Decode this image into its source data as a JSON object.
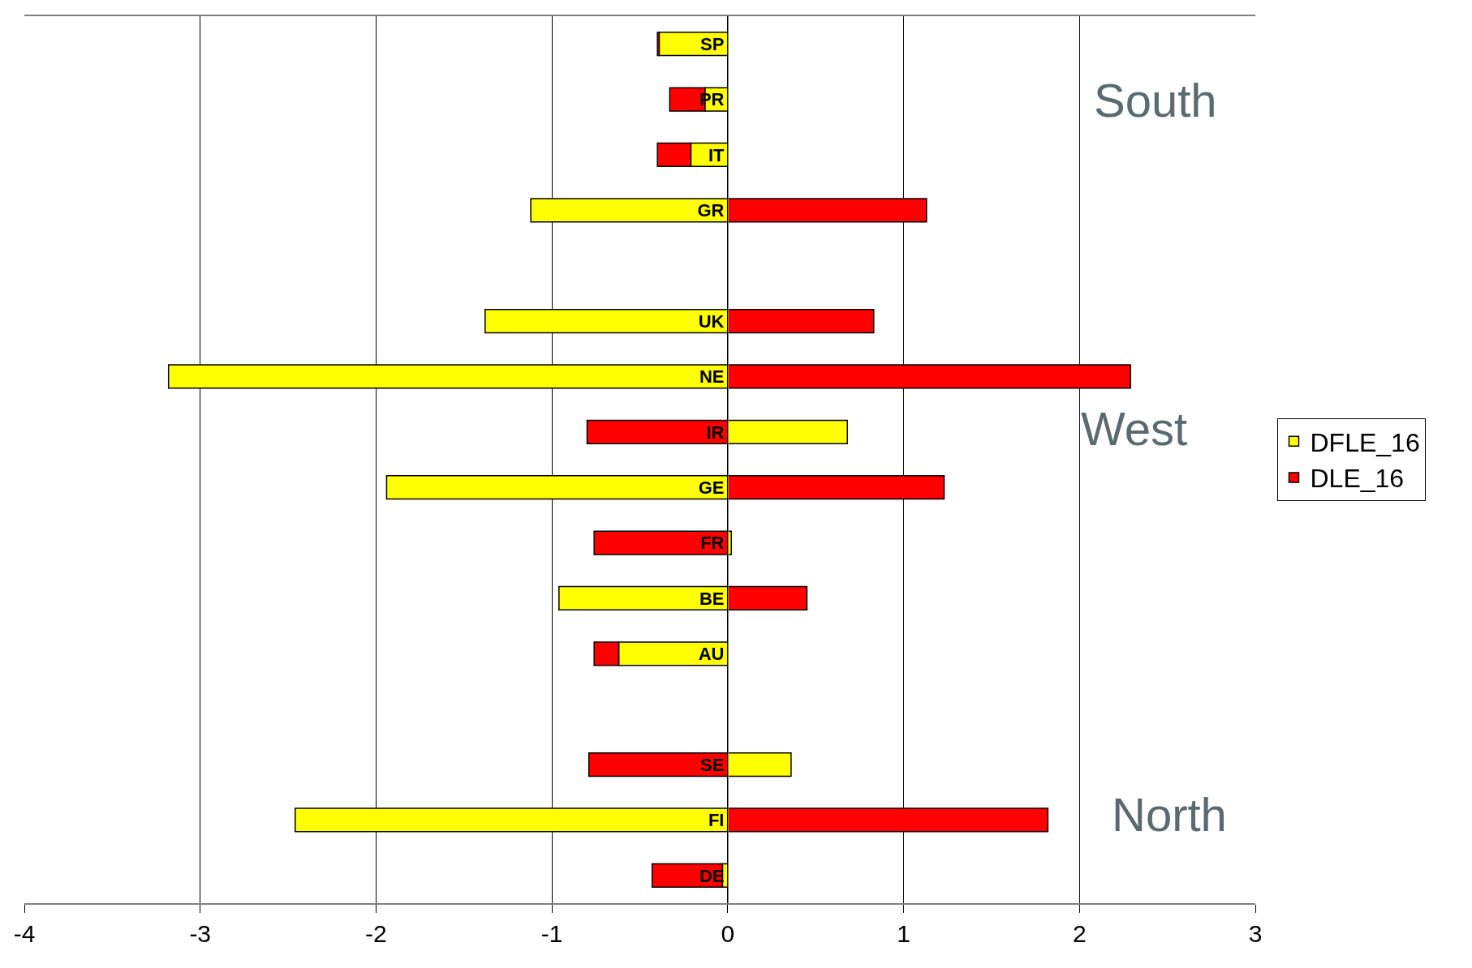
{
  "chart_data": {
    "type": "bar",
    "orientation": "horizontal",
    "stacked": true,
    "categories": [
      "SP",
      "PR",
      "IT",
      "GR",
      null,
      "UK",
      "NE",
      "IR",
      "GE",
      "FR",
      "BE",
      "AU",
      null,
      "SE",
      "FI",
      "DE"
    ],
    "series": [
      {
        "name": "DFLE_16",
        "color": "#ffff00",
        "values": [
          -0.39,
          -0.13,
          -0.21,
          -1.12,
          null,
          -1.38,
          -3.18,
          0.68,
          -1.94,
          0.02,
          -0.96,
          -0.62,
          null,
          0.36,
          -2.46,
          -0.03
        ]
      },
      {
        "name": "DLE_16",
        "color": "#ff0000",
        "values": [
          -0.01,
          -0.2,
          -0.19,
          1.13,
          null,
          0.83,
          2.29,
          -0.8,
          1.23,
          -0.76,
          0.45,
          -0.14,
          null,
          -0.79,
          1.82,
          -0.4
        ]
      }
    ],
    "xlim": [
      -4,
      3
    ],
    "xticks": [
      -4,
      -3,
      -2,
      -1,
      0,
      1,
      2,
      3
    ],
    "grid": "x",
    "legend": "right",
    "annotations": [
      "South",
      "West",
      "North"
    ]
  }
}
